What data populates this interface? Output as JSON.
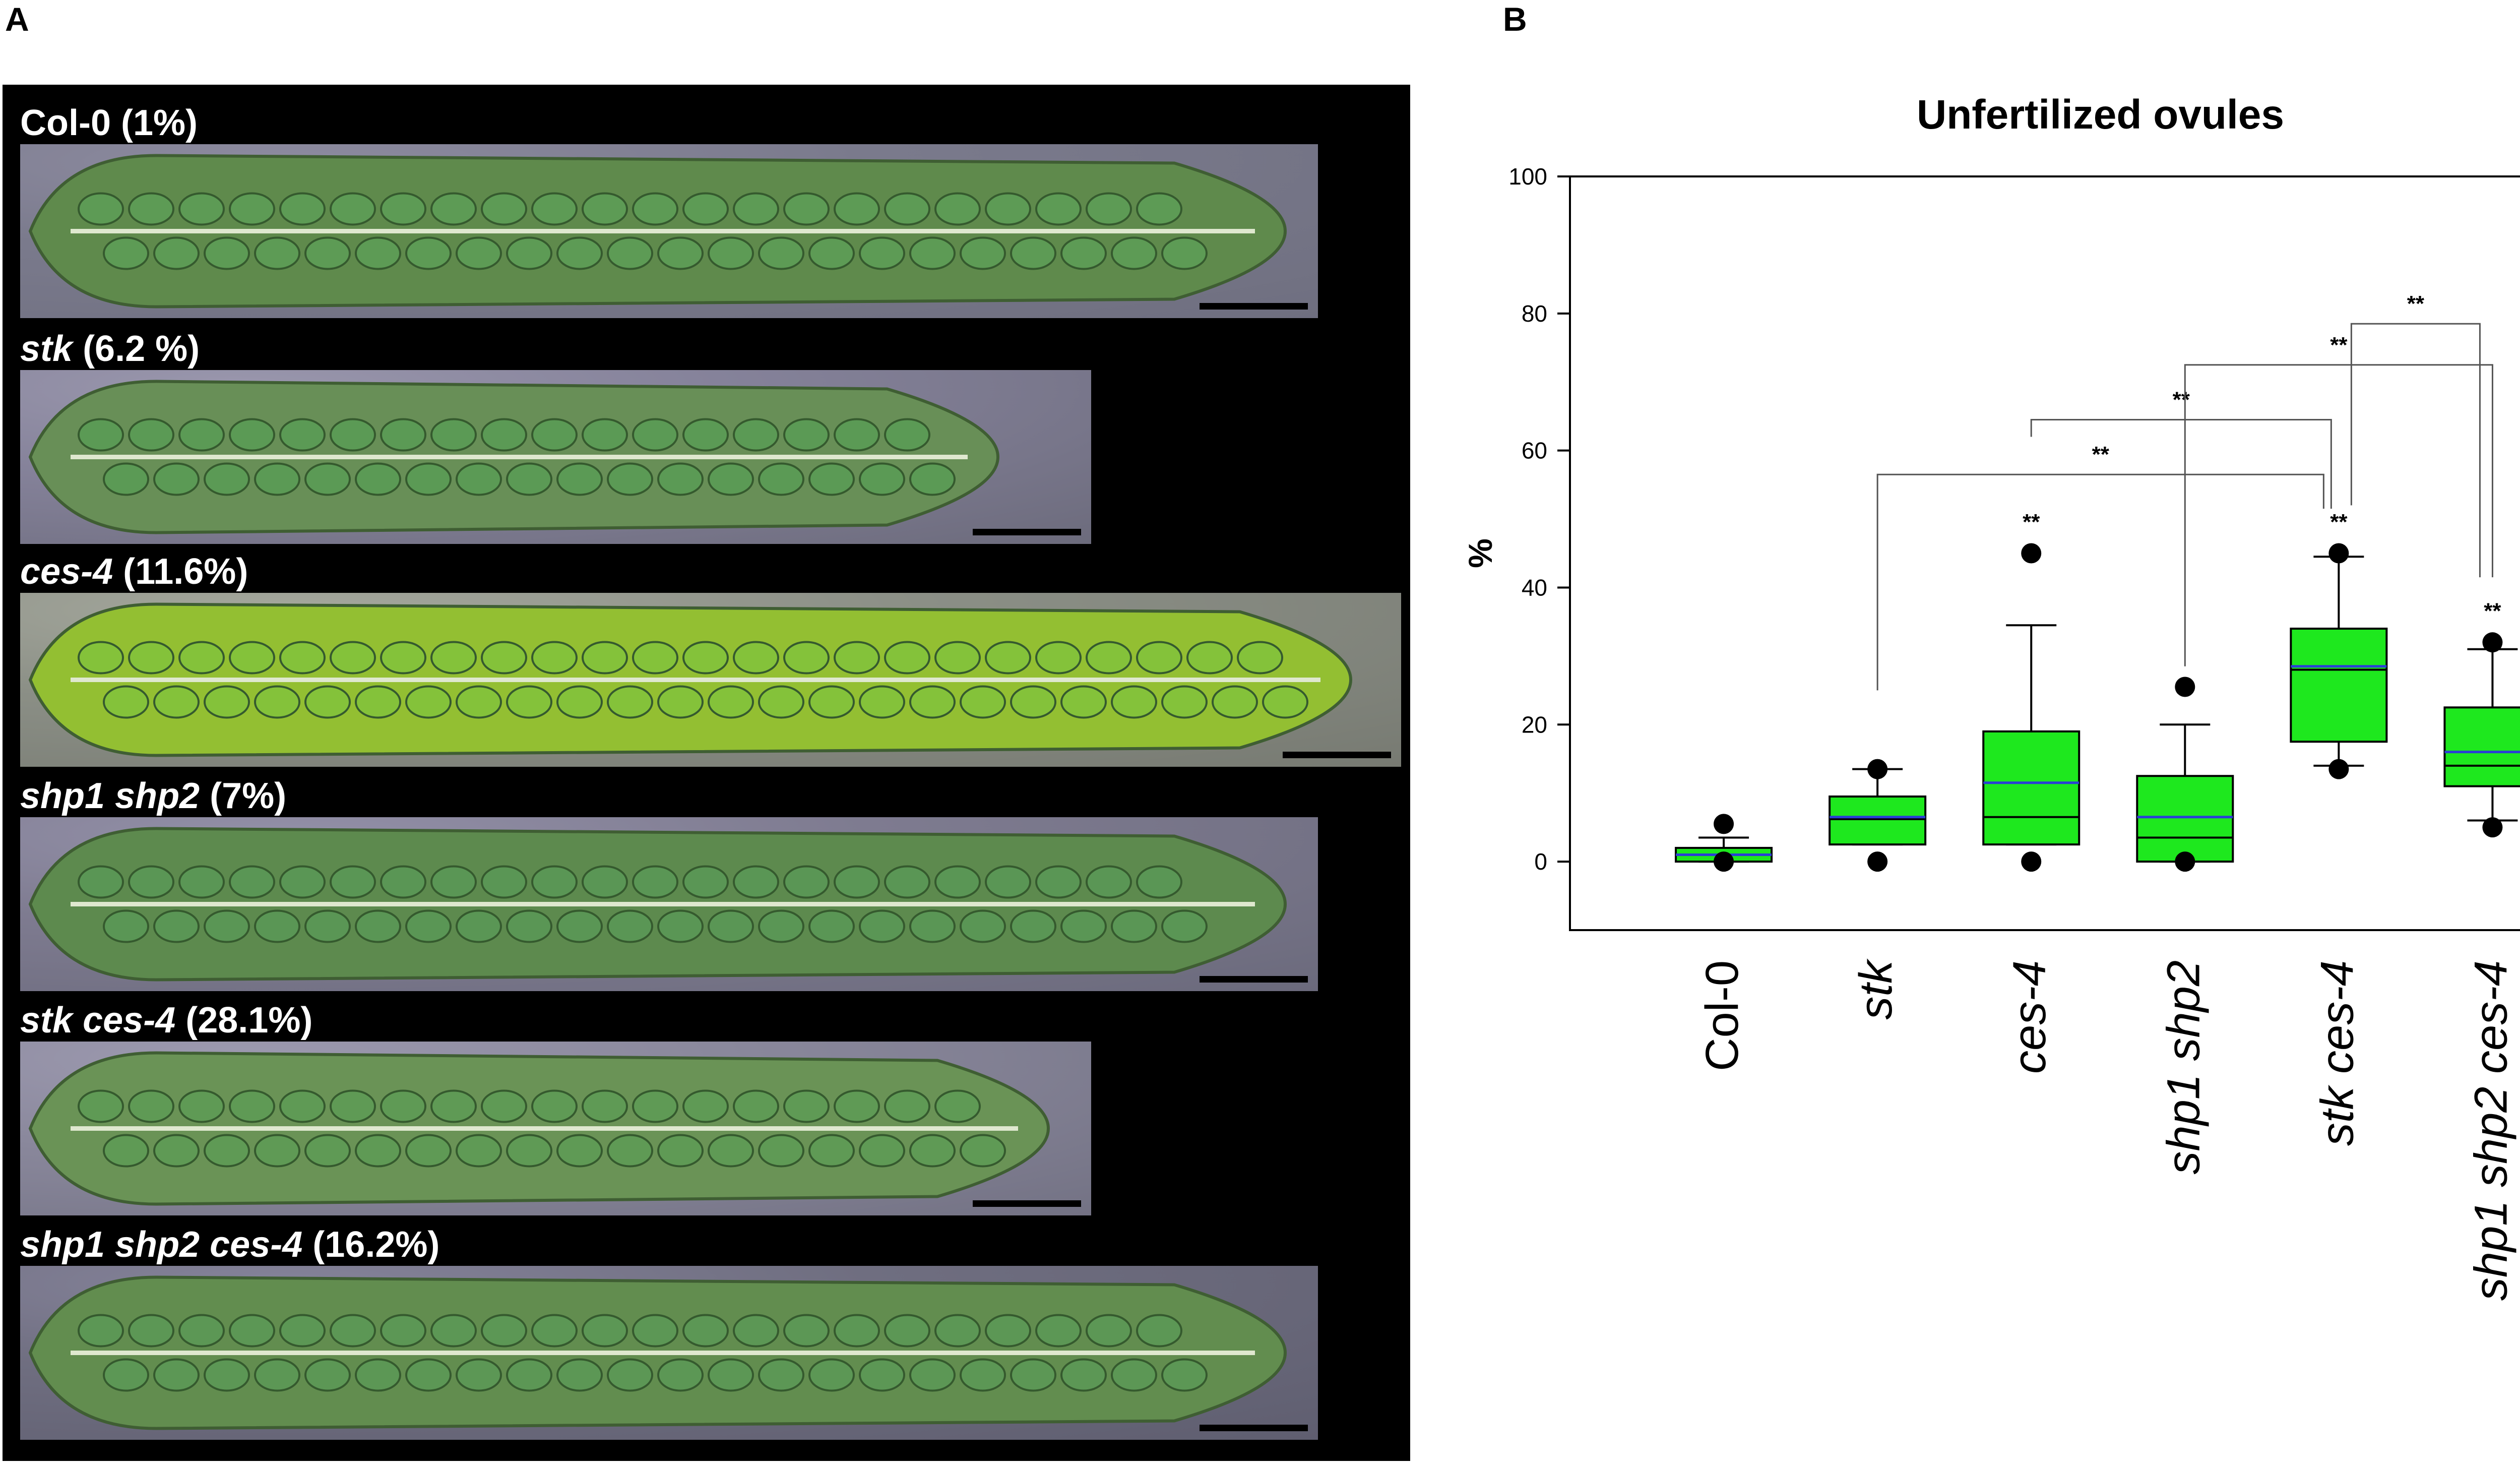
{
  "panel_a": {
    "letter": "A",
    "rows": [
      {
        "genotype": "Col-0",
        "italic": false,
        "value": "(1%)",
        "photo": "color-photograph-silique-col0"
      },
      {
        "genotype": "stk",
        "italic": true,
        "value": "(6.2 %)",
        "photo": "color-photograph-silique-stk"
      },
      {
        "genotype": "ces-4",
        "italic": true,
        "value": "(11.6%)",
        "photo": "color-photograph-silique-ces4"
      },
      {
        "genotype": "shp1 shp2",
        "italic": true,
        "value": "(7%)",
        "photo": "color-photograph-silique-shp1-shp2"
      },
      {
        "genotype": "stk ces-4",
        "italic": true,
        "value": "(28.1%)",
        "photo": "color-photograph-silique-stk-ces4"
      },
      {
        "genotype": "shp1 shp2 ces-4",
        "italic": true,
        "value": "(16.2%)",
        "photo": "color-photograph-silique-shp1-shp2-ces4"
      }
    ]
  },
  "panel_b": {
    "letter": "B"
  },
  "chart_data": {
    "type": "box",
    "title": "Unfertilized ovules",
    "ylabel": "%",
    "ylim": [
      -10,
      100
    ],
    "yticks": [
      0,
      20,
      40,
      60,
      80,
      100
    ],
    "colors": {
      "box_fill": "#1ee81e",
      "mean_line": "#2a3fd6",
      "median_line": "#000000",
      "outlier": "#000000",
      "frame": "#000000"
    },
    "categories": [
      "Col-0",
      "stk",
      "ces-4",
      "shp1 shp2",
      "stk ces-4",
      "shp1 shp2 ces-4"
    ],
    "boxes": [
      {
        "category": "Col-0",
        "whisker_low": 0,
        "q1": 0,
        "median": 1,
        "mean": 1,
        "q3": 2,
        "whisker_high": 3.5,
        "outliers": [
          0,
          5.5
        ]
      },
      {
        "category": "stk",
        "whisker_low": 2.5,
        "q1": 2.5,
        "median": 6.2,
        "mean": 6.5,
        "q3": 9.5,
        "whisker_high": 13.5,
        "outliers": [
          0,
          13.5
        ]
      },
      {
        "category": "ces-4",
        "whisker_low": 2.5,
        "q1": 2.5,
        "median": 6.5,
        "mean": 11.5,
        "q3": 19,
        "whisker_high": 34.5,
        "outliers": [
          0,
          45
        ]
      },
      {
        "category": "shp1 shp2",
        "whisker_low": 0,
        "q1": 0,
        "median": 3.5,
        "mean": 6.5,
        "q3": 12.5,
        "whisker_high": 20,
        "outliers": [
          0,
          25.5
        ]
      },
      {
        "category": "stk ces-4",
        "whisker_low": 14,
        "q1": 17.5,
        "median": 28,
        "mean": 28.5,
        "q3": 34,
        "whisker_high": 44.5,
        "outliers": [
          13.5,
          45
        ]
      },
      {
        "category": "shp1 shp2 ces-4",
        "whisker_low": 6,
        "q1": 11,
        "median": 14,
        "mean": 16,
        "q3": 22.5,
        "whisker_high": 31,
        "outliers": [
          5,
          32
        ]
      }
    ],
    "significance_marks": [
      {
        "over": "ces-4",
        "label": "**",
        "y": 48.5
      },
      {
        "over": "stk ces-4",
        "label": "**",
        "y": 48.5
      },
      {
        "over": "shp1 shp2 ces-4",
        "label": "**",
        "y": 35.5
      }
    ],
    "brackets": [
      {
        "from": "stk",
        "to": "stk ces-4",
        "label": "**",
        "top": 56.5,
        "from_start": 25,
        "to_end": 51.5
      },
      {
        "from": "ces-4",
        "to": "stk ces-4",
        "label": "**",
        "top": 64.5,
        "from_start": 62,
        "to_end": 51.5
      },
      {
        "from": "shp1 shp2",
        "to": "shp1 shp2 ces-4",
        "label": "**",
        "top": 72.5,
        "from_start": 28.5,
        "to_end": 41.5
      },
      {
        "from": "stk ces-4",
        "to": "shp1 shp2 ces-4",
        "label": "**",
        "top": 78.5,
        "from_start": 52,
        "to_end": 41.5
      }
    ]
  }
}
